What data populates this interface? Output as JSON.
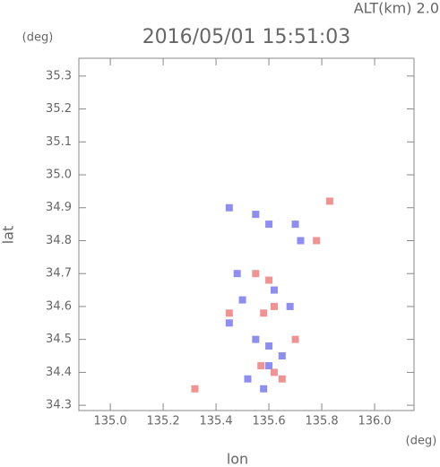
{
  "chart_data": {
    "type": "scatter",
    "title": "2016/05/01 15:51:03",
    "subtitle": "ALT(km) 2.0",
    "x_label": "lon",
    "x_unit": "(deg)",
    "y_label": "lat",
    "y_unit": "(deg)",
    "xlim": [
      134.881,
      136.149
    ],
    "ylim": [
      34.284,
      35.354
    ],
    "xticks": [
      {
        "value": 135.0,
        "label": "135.0"
      },
      135.2,
      135.4,
      135.6,
      135.8,
      {
        "value": 136.0,
        "label": "136.0"
      }
    ],
    "yticks": [
      34.3,
      34.4,
      34.5,
      34.6,
      34.7,
      34.8,
      34.9,
      {
        "value": 35.0,
        "label": "35.0"
      },
      35.1,
      35.2,
      35.3
    ],
    "series": [
      {
        "color": "#7a7af0",
        "x": [
          135.45,
          135.55,
          135.6,
          135.72,
          135.5,
          135.55,
          135.6,
          135.65,
          135.52,
          135.6,
          135.68,
          135.45,
          135.48,
          135.58,
          135.62,
          135.7
        ],
        "values": [
          34.9,
          34.88,
          34.85,
          34.8,
          34.62,
          34.5,
          34.48,
          34.45,
          34.38,
          34.42,
          34.6,
          34.55,
          34.7,
          34.35,
          34.65,
          34.85
        ]
      },
      {
        "color": "#f08080",
        "x": [
          135.83,
          135.78,
          135.62,
          135.65,
          135.58,
          135.62,
          135.55,
          135.6,
          135.7,
          135.32,
          135.45,
          135.57
        ],
        "values": [
          34.92,
          34.8,
          34.4,
          34.38,
          34.58,
          34.6,
          34.7,
          34.68,
          34.5,
          34.35,
          34.58,
          34.42
        ]
      }
    ]
  }
}
